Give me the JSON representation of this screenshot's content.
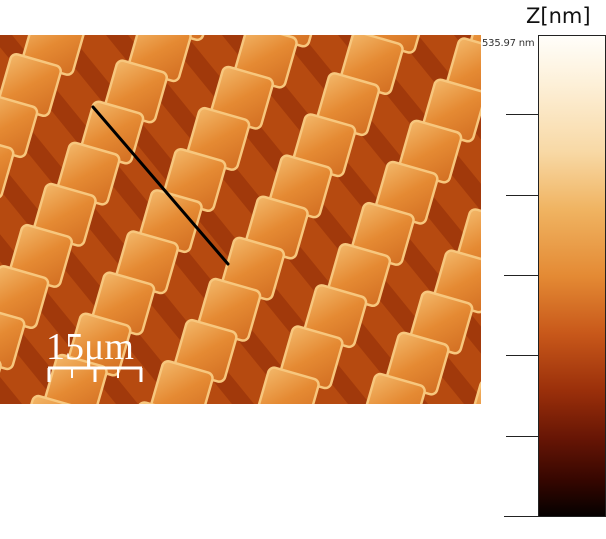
{
  "image": {
    "description_kind": "afm-height-map",
    "scale_bar": {
      "label": "15μm",
      "color": "#ffffff"
    },
    "profile_line": {
      "color": "#000000"
    },
    "palette": {
      "background": "#b64a10",
      "feature": "#e2842e",
      "feature_edge": "#f7c77e",
      "dark_stripe": "#8f2c07"
    }
  },
  "colorbar": {
    "title": "Z[nm]",
    "top_label": "535.97 nm",
    "ticks_count": 6
  }
}
